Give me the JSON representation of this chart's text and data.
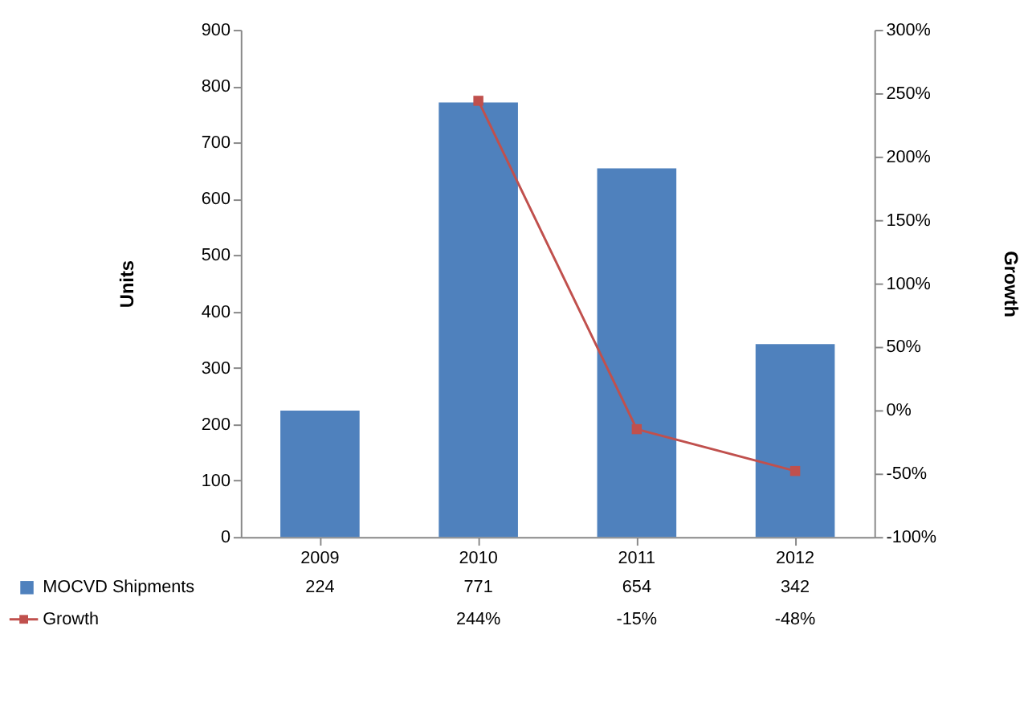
{
  "chart_data": {
    "type": "bar",
    "categories": [
      "2009",
      "2010",
      "2011",
      "2012"
    ],
    "ylabel": "Units",
    "y2label": "Growth",
    "series": [
      {
        "name": "MOCVD Shipments",
        "color": "#4f81bd",
        "values": [
          224,
          771,
          654,
          342
        ],
        "value_labels": [
          "224",
          "771",
          "654",
          "342"
        ]
      },
      {
        "name": "Growth",
        "type": "line",
        "axis": "y2",
        "color": "#c0504d",
        "marker": "square",
        "line_style": "solid",
        "values": [
          null,
          244,
          -15,
          -48
        ],
        "value_labels": [
          null,
          "244%",
          "-15%",
          "-48%"
        ]
      }
    ],
    "ylim": [
      0,
      900
    ],
    "yticks": [
      0,
      100,
      200,
      300,
      400,
      500,
      600,
      700,
      800,
      900
    ],
    "y2lim": [
      -100,
      300
    ],
    "y2ticks": [
      {
        "value": -100,
        "label": "-100%"
      },
      {
        "value": -50,
        "label": "-50%"
      },
      {
        "value": 0,
        "label": "0%"
      },
      {
        "value": 50,
        "label": "50%"
      },
      {
        "value": 100,
        "label": "100%"
      },
      {
        "value": 150,
        "label": "150%"
      },
      {
        "value": 200,
        "label": "200%"
      },
      {
        "value": 250,
        "label": "250%"
      },
      {
        "value": 300,
        "label": "300%"
      }
    ],
    "grid": false,
    "legend": "bottom"
  }
}
